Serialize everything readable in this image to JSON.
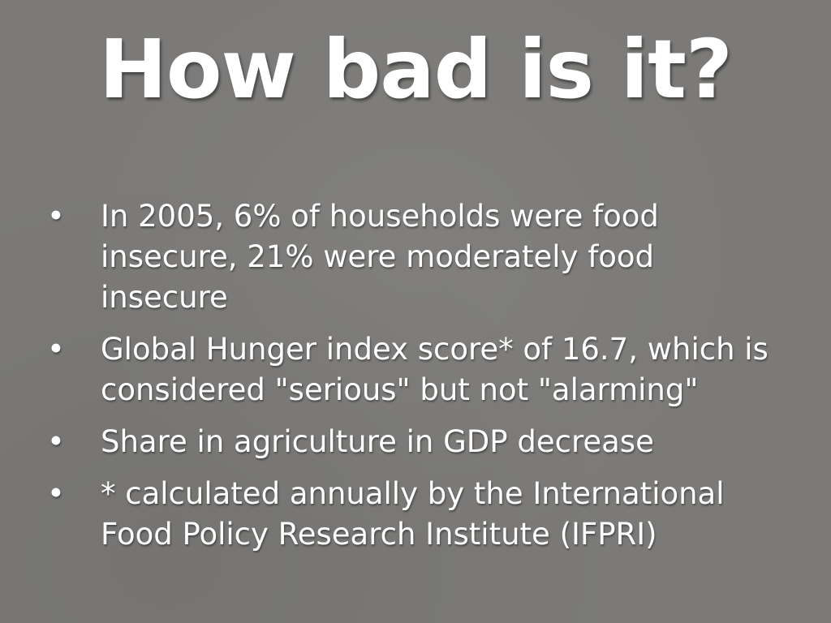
{
  "slide": {
    "title": "How bad is it?",
    "bullet_marker": "•",
    "bullets": [
      {
        "text": "In 2005, 6% of households were food insecure, 21% were moderately food insecure"
      },
      {
        "text": "Global Hunger index score* of 16.7, which is considered \"serious\" but not \"alarming\""
      },
      {
        "text": "Share in agriculture in GDP decrease"
      },
      {
        "text": "* calculated annually by the International Food Policy Research Institute (IFPRI)"
      }
    ]
  },
  "colors": {
    "background": "#7b7a78",
    "text": "#ffffff"
  }
}
